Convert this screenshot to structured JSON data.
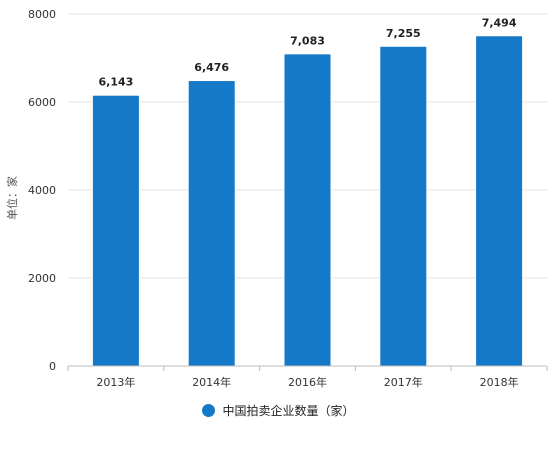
{
  "chart_data": {
    "type": "bar",
    "title": "",
    "xlabel": "",
    "ylabel": "单位：家",
    "categories": [
      "2013年",
      "2014年",
      "2016年",
      "2017年",
      "2018年"
    ],
    "series": [
      {
        "name": "中国拍卖企业数量（家）",
        "values": [
          6143,
          6476,
          7083,
          7255,
          7494
        ],
        "value_labels": [
          "6,143",
          "6,476",
          "7,083",
          "7,255",
          "7,494"
        ]
      }
    ],
    "ylim": [
      0,
      8000
    ],
    "yticks": [
      "0",
      "2000",
      "4000",
      "6000",
      "8000"
    ],
    "grid": true,
    "legend_position": "bottom",
    "bar_color": "#1479c8"
  }
}
